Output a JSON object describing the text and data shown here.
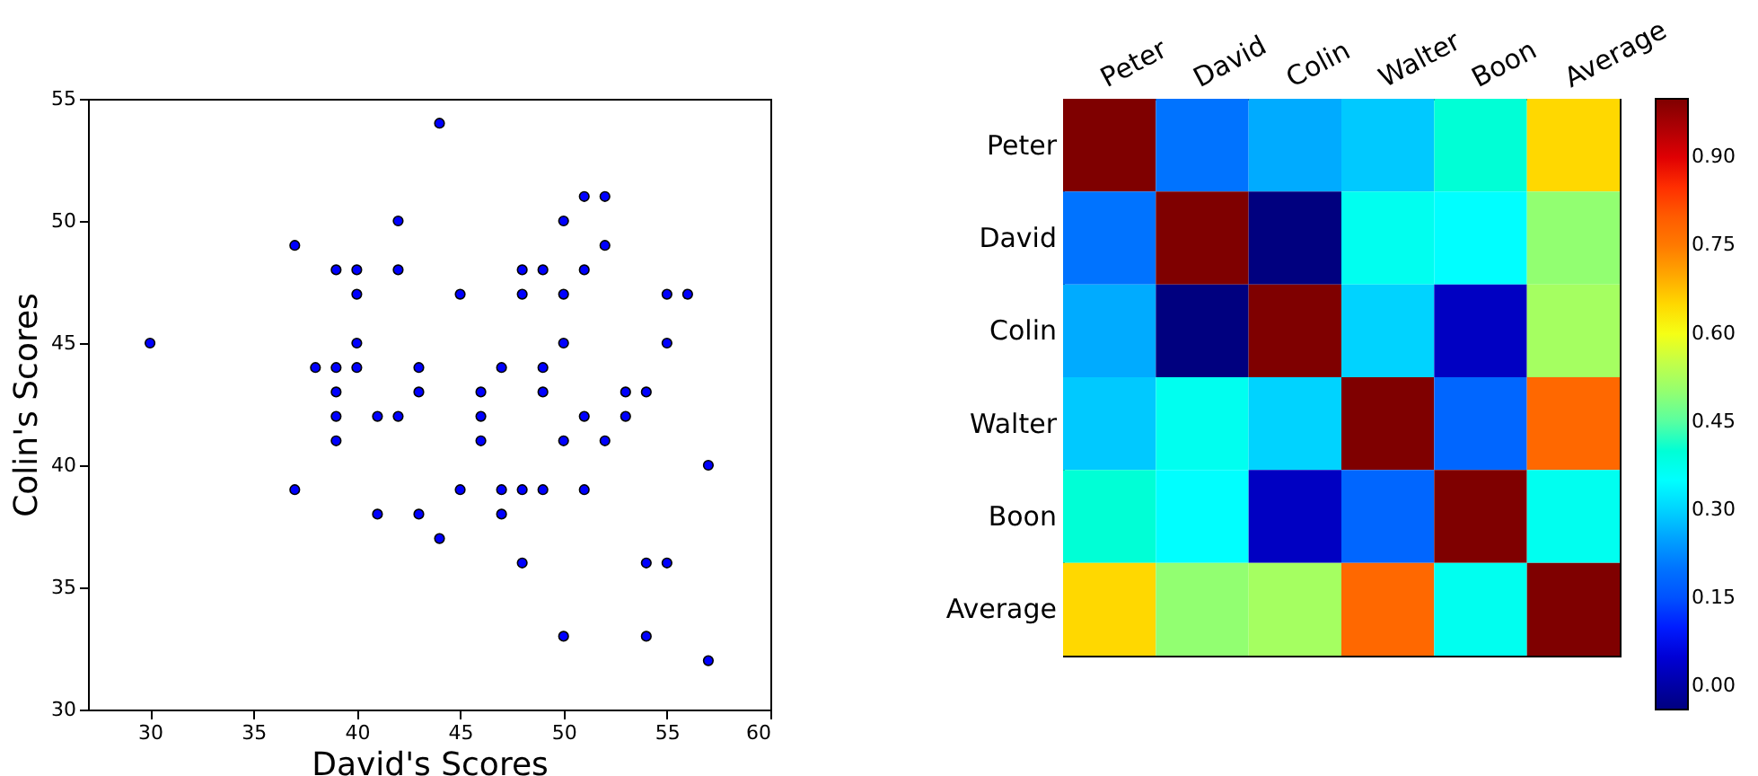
{
  "chart_data": [
    {
      "type": "scatter",
      "xlabel": "David's Scores",
      "ylabel": "Colin's Scores",
      "marker": "circle",
      "grid": false,
      "xlim": [
        27,
        60
      ],
      "xticks": [
        30,
        35,
        40,
        45,
        50,
        55,
        60
      ],
      "ylim": [
        30,
        55
      ],
      "yticks": [
        30,
        35,
        40,
        45,
        50,
        55
      ],
      "series": [
        {
          "color": "#0000ff",
          "x": [
            30,
            37,
            37,
            38,
            39,
            39,
            39,
            39,
            39,
            40,
            40,
            40,
            40,
            41,
            41,
            42,
            42,
            42,
            43,
            43,
            43,
            44,
            44,
            45,
            45,
            46,
            46,
            46,
            47,
            47,
            47,
            48,
            48,
            48,
            48,
            49,
            49,
            49,
            49,
            50,
            50,
            50,
            50,
            50,
            51,
            51,
            51,
            51,
            52,
            52,
            52,
            53,
            53,
            54,
            54,
            54,
            55,
            55,
            55,
            56,
            57,
            57
          ],
          "values": [
            45,
            49,
            39,
            44,
            48,
            44,
            43,
            42,
            41,
            48,
            47,
            45,
            44,
            42,
            38,
            50,
            48,
            42,
            44,
            43,
            38,
            54,
            37,
            47,
            39,
            43,
            42,
            41,
            44,
            39,
            38,
            48,
            47,
            39,
            36,
            48,
            44,
            43,
            39,
            50,
            47,
            45,
            41,
            33,
            51,
            48,
            42,
            39,
            51,
            49,
            41,
            43,
            42,
            43,
            36,
            33,
            47,
            45,
            36,
            47,
            40,
            32
          ]
        }
      ]
    },
    {
      "type": "heatmap",
      "categories": [
        "Peter",
        "David",
        "Colin",
        "Walter",
        "Boon",
        "Average"
      ],
      "y_categories": [
        "Peter",
        "David",
        "Colin",
        "Walter",
        "Boon",
        "Average"
      ],
      "cells": [
        [
          1,
          0.2,
          0.26,
          0.29,
          0.4,
          0.65
        ],
        [
          0.2,
          1,
          -0.04,
          0.37,
          0.35,
          0.5
        ],
        [
          0.26,
          -0.04,
          1,
          0.3,
          0.03,
          0.52
        ],
        [
          0.29,
          0.37,
          0.3,
          1,
          0.18,
          0.78
        ],
        [
          0.4,
          0.35,
          0.03,
          0.18,
          1,
          0.37
        ],
        [
          0.65,
          0.5,
          0.52,
          0.78,
          0.37,
          1
        ]
      ],
      "clim": [
        -0.04,
        1.0
      ],
      "cticks": [
        {
          "value": 0,
          "label": "0.00"
        },
        {
          "value": 0.15,
          "label": "0.15"
        },
        {
          "value": 0.3,
          "label": "0.30"
        },
        {
          "value": 0.45,
          "label": "0.45"
        },
        {
          "value": 0.6,
          "label": "0.60"
        },
        {
          "value": 0.75,
          "label": "0.75"
        },
        {
          "value": 0.9,
          "label": "0.90"
        }
      ]
    }
  ]
}
